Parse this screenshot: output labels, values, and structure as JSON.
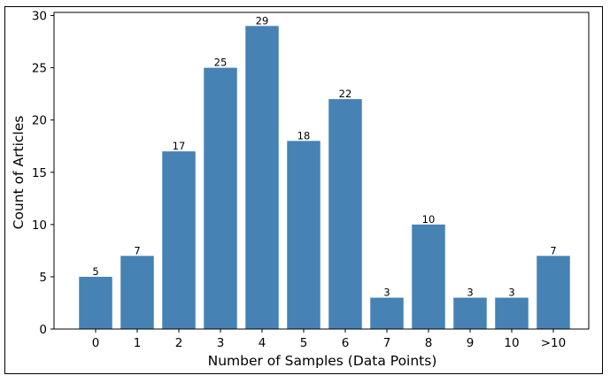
{
  "chart_data": {
    "type": "bar",
    "categories": [
      "0",
      "1",
      "2",
      "3",
      "4",
      "5",
      "6",
      "7",
      "8",
      "9",
      "10",
      ">10"
    ],
    "values": [
      5,
      7,
      17,
      25,
      29,
      18,
      22,
      3,
      10,
      3,
      3,
      7
    ],
    "title": "",
    "xlabel": "Number of Samples (Data Points)",
    "ylabel": "Count of Articles",
    "ylim": [
      0,
      30.3
    ],
    "yticks": [
      0,
      5,
      10,
      15,
      20,
      25,
      30
    ],
    "grid": false,
    "bar_color": "#4682b4",
    "data_labels": true
  }
}
